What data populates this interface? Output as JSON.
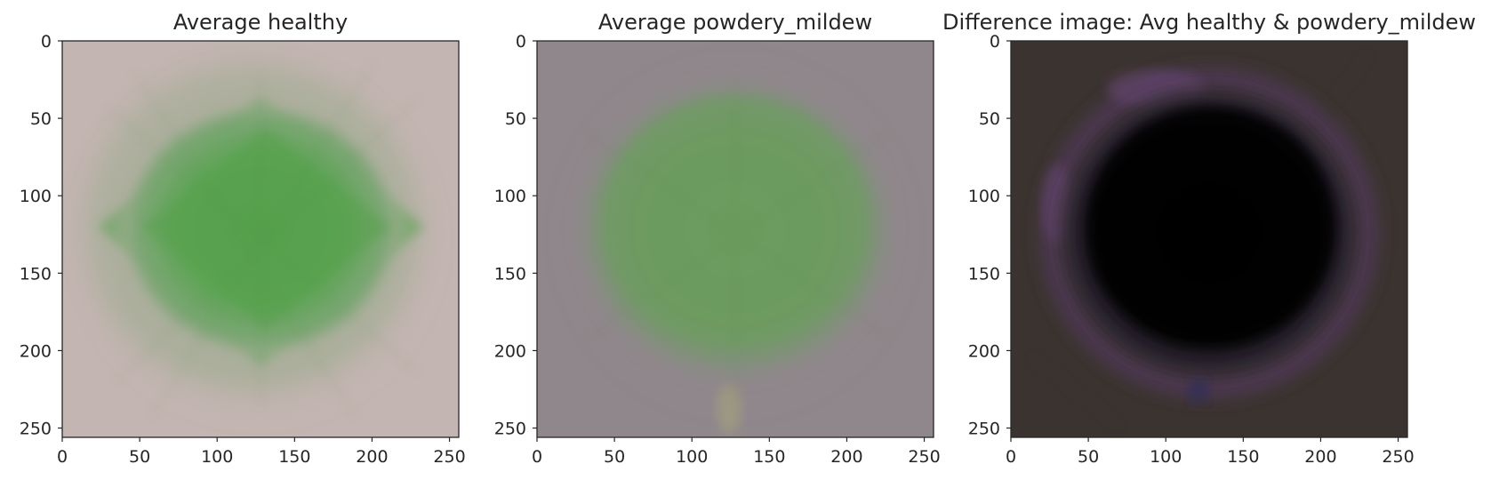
{
  "chart_data": [
    {
      "type": "image",
      "title": "Average healthy",
      "xlim": [
        0,
        256
      ],
      "ylim": [
        256,
        0
      ],
      "x_ticks": [
        0,
        50,
        100,
        150,
        200,
        250
      ],
      "y_ticks": [
        0,
        50,
        100,
        150,
        200,
        250
      ],
      "grid": false,
      "colors": {
        "background": "#c3b5b1",
        "leaf": "#5aa351",
        "leaf_edge": "#93a386"
      }
    },
    {
      "type": "image",
      "title": "Average powdery_mildew",
      "xlim": [
        0,
        256
      ],
      "ylim": [
        256,
        0
      ],
      "x_ticks": [
        0,
        50,
        100,
        150,
        200,
        250
      ],
      "y_ticks": [
        0,
        50,
        100,
        150,
        200,
        250
      ],
      "grid": false,
      "colors": {
        "background": "#8f878b",
        "leaf": "#6c9c5f",
        "leaf_edge": "#82927b"
      }
    },
    {
      "type": "image",
      "title": "Difference image: Avg healthy & powdery_mildew",
      "xlim": [
        0,
        256
      ],
      "ylim": [
        256,
        0
      ],
      "x_ticks": [
        0,
        50,
        100,
        150,
        200,
        250
      ],
      "y_ticks": [
        0,
        50,
        100,
        150,
        200,
        250
      ],
      "grid": false,
      "colors": {
        "background": "#3b3330",
        "leaf": "#030303",
        "leaf_edge": "#5a3c6a"
      }
    }
  ]
}
